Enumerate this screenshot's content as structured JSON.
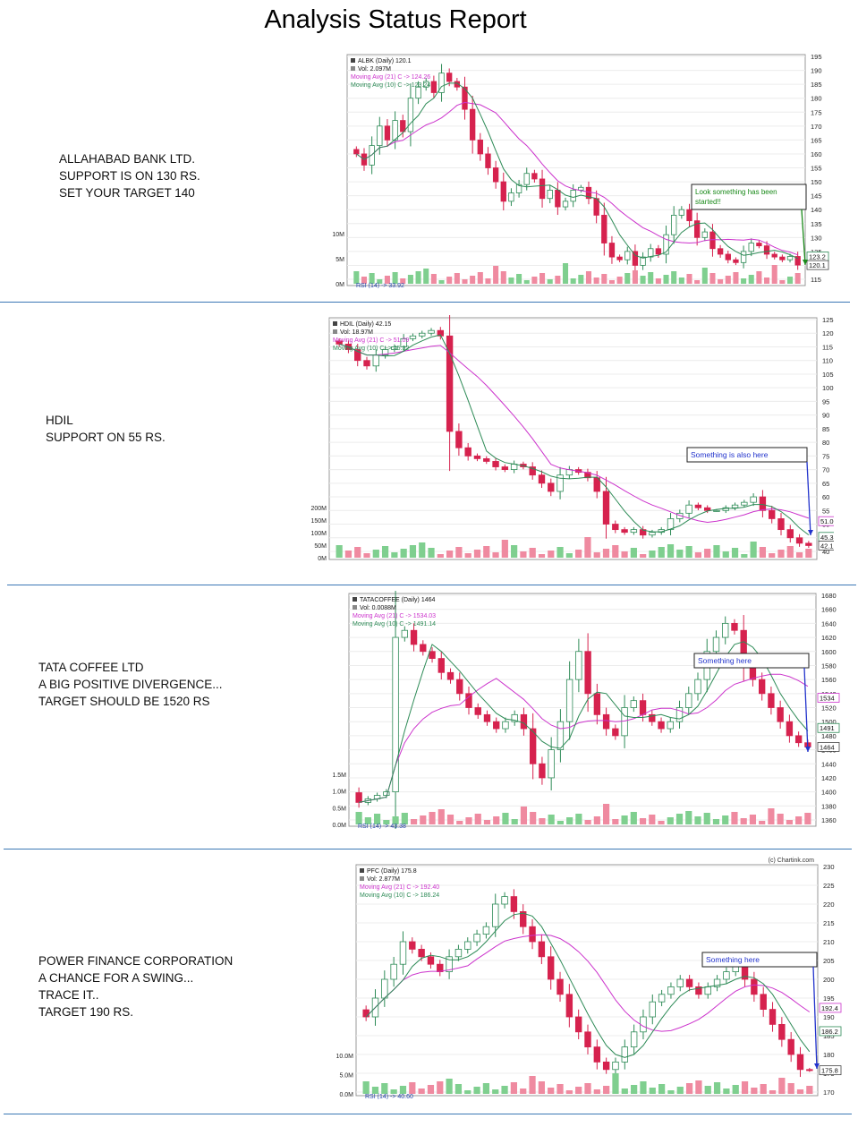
{
  "page": {
    "title": "Analysis Status Report"
  },
  "colors": {
    "up": "#2e8b57",
    "down": "#d6224e",
    "ma21": "#cc33cc",
    "ma10": "#2e8b57",
    "vol_up": "#7fcf8f",
    "vol_down": "#ef8aa0",
    "separator": "#3b78b5",
    "callout_green": "#1a8a1a",
    "callout_blue": "#2233cc"
  },
  "charts": [
    {
      "note_lines": [
        "ALLAHABAD BANK LTD.",
        "SUPPORT IS ON 130 RS.",
        "SET YOUR TARGET 140"
      ],
      "legend": {
        "title": "ALBK (Daily) 120.1",
        "vol": "Vol: 2.097M",
        "ma21": "Moving Avg (21) C -> 124.26",
        "ma10": "Moving Avg (10) C -> 123.24"
      },
      "vol_labels": [
        "10M",
        "5M",
        "0M"
      ],
      "rsi_label": "RSI (14) -> 33.92",
      "callout": {
        "text": "Look something has been started!!",
        "color": "callout_green"
      },
      "price_tags": [
        {
          "text": "123.2",
          "value": 123.2
        },
        {
          "text": "120.1",
          "value": 120.1
        }
      ],
      "chart_data": {
        "type": "candlestick",
        "title": "ALBK (Daily) 120.1",
        "ylim": [
          115,
          195
        ],
        "y_ticks": [
          "195",
          "190",
          "185",
          "180",
          "175",
          "170",
          "165",
          "160",
          "155",
          "150",
          "145",
          "140",
          "135",
          "130",
          "125",
          "120",
          "115"
        ],
        "close": [
          160,
          156,
          163,
          170,
          165,
          172,
          168,
          180,
          184,
          186,
          182,
          189,
          186,
          184,
          176,
          165,
          160,
          155,
          150,
          143,
          146,
          149,
          153,
          151,
          144,
          147,
          141,
          143,
          147,
          148,
          144,
          138,
          128,
          123,
          122,
          125,
          120,
          123,
          126,
          124,
          131,
          138,
          140,
          136,
          130,
          132,
          126,
          124,
          122,
          121,
          125,
          128,
          127,
          124,
          123,
          122,
          123.2,
          120.1
        ],
        "ma21_end": 124.26,
        "ma10_end": 123.24,
        "volume_end": "2.097M"
      }
    },
    {
      "note_lines": [
        "HDIL",
        "SUPPORT ON 55 RS."
      ],
      "legend": {
        "title": "HDIL (Daily) 42.15",
        "vol": "Vol: 18.97M",
        "ma21": "Moving Avg (21) C -> 51.09",
        "ma10": "Moving Avg (10) C -> 45.32"
      },
      "vol_labels": [
        "200M",
        "150M",
        "100M",
        "50M",
        "0M"
      ],
      "rsi_label": "",
      "callout": {
        "text": "Something is also here",
        "color": "callout_blue"
      },
      "price_tags": [
        {
          "text": "51.09",
          "value": 51.09
        },
        {
          "text": "45.32",
          "value": 45.32
        },
        {
          "text": "42.15",
          "value": 42.15
        }
      ],
      "chart_data": {
        "type": "candlestick",
        "title": "HDIL (Daily) 42.15",
        "ylim": [
          40,
          125
        ],
        "y_ticks": [
          "125",
          "120",
          "115",
          "110",
          "105",
          "100",
          "95",
          "90",
          "85",
          "80",
          "75",
          "70",
          "65",
          "60",
          "55",
          "50",
          "45",
          "40"
        ],
        "close": [
          116,
          114,
          110,
          108,
          112,
          114,
          115,
          118,
          119,
          120,
          121,
          119,
          84,
          78,
          75,
          74,
          73,
          71,
          70,
          72,
          71,
          68,
          65,
          62,
          68,
          70,
          69,
          67,
          62,
          50,
          48,
          47,
          48,
          46,
          47,
          48,
          52,
          54,
          57,
          56,
          55,
          55,
          56,
          57,
          58,
          60,
          55,
          52,
          48,
          45,
          43,
          42.15
        ],
        "ma21_end": 51.09,
        "ma10_end": 45.32,
        "volume_end": "18.97M"
      }
    },
    {
      "note_lines": [
        "TATA COFFEE LTD",
        "A BIG POSITIVE DIVERGENCE...",
        "TARGET SHOULD BE 1520 RS"
      ],
      "legend": {
        "title": "TATACOFFEE (Daily) 1464",
        "vol": "Vol: 0.0088M",
        "ma21": "Moving Avg (21) C -> 1534.03",
        "ma10": "Moving Avg (10) C -> 1491.14"
      },
      "vol_labels": [
        "1.5M",
        "1.0M",
        "0.5M",
        "0.0M"
      ],
      "rsi_label": "RSI (14) -> 43.38",
      "callout": {
        "text": "Something here",
        "color": "callout_blue"
      },
      "price_tags": [
        {
          "text": "1534",
          "value": 1534
        },
        {
          "text": "1491",
          "value": 1491
        },
        {
          "text": "1464",
          "value": 1464
        }
      ],
      "chart_data": {
        "type": "candlestick",
        "title": "TATACOFFEE (Daily) 1464",
        "ylim": [
          1360,
          1680
        ],
        "y_ticks": [
          "1680",
          "1660",
          "1640",
          "1620",
          "1600",
          "1580",
          "1560",
          "1540",
          "1520",
          "1500",
          "1480",
          "1460",
          "1440",
          "1420",
          "1400",
          "1380",
          "1360"
        ],
        "close": [
          1385,
          1390,
          1395,
          1400,
          1620,
          1630,
          1610,
          1600,
          1590,
          1570,
          1560,
          1540,
          1520,
          1510,
          1500,
          1490,
          1500,
          1510,
          1490,
          1440,
          1420,
          1460,
          1500,
          1560,
          1600,
          1540,
          1510,
          1490,
          1480,
          1520,
          1530,
          1510,
          1500,
          1490,
          1500,
          1520,
          1540,
          1560,
          1600,
          1620,
          1640,
          1630,
          1580,
          1560,
          1540,
          1520,
          1500,
          1480,
          1470,
          1464
        ],
        "ma21_end": 1534.03,
        "ma10_end": 1491.14,
        "volume_end": "0.0088M"
      }
    },
    {
      "note_lines": [
        "POWER FINANCE CORPORATION",
        "A CHANCE FOR A SWING...",
        "TRACE IT..",
        "TARGET 190 RS."
      ],
      "legend": {
        "title": "PFC (Daily) 175.8",
        "vol": "Vol: 2.877M",
        "ma21": "Moving Avg (21) C -> 192.40",
        "ma10": "Moving Avg (10) C -> 186.24"
      },
      "vol_labels": [
        "10.0M",
        "5.0M",
        "0.0M"
      ],
      "rsi_label": "RSI (14) -> 40.60",
      "copyright": "(c) Chartink.com",
      "callout": {
        "text": "Something here",
        "color": "callout_blue"
      },
      "price_tags": [
        {
          "text": "192.4",
          "value": 192.4
        },
        {
          "text": "186.2",
          "value": 186.2
        },
        {
          "text": "175.8",
          "value": 175.8
        }
      ],
      "chart_data": {
        "type": "candlestick",
        "title": "PFC (Daily) 175.8",
        "ylim": [
          170,
          230
        ],
        "y_ticks": [
          "230",
          "225",
          "220",
          "215",
          "210",
          "205",
          "200",
          "195",
          "190",
          "185",
          "180",
          "175",
          "170"
        ],
        "close": [
          190,
          195,
          200,
          204,
          210,
          208,
          206,
          204,
          202,
          206,
          208,
          210,
          212,
          214,
          220,
          222,
          218,
          214,
          210,
          206,
          200,
          196,
          190,
          186,
          182,
          178,
          176,
          178,
          182,
          186,
          190,
          194,
          196,
          198,
          200,
          198,
          196,
          198,
          200,
          202,
          204,
          200,
          196,
          192,
          188,
          184,
          180,
          176,
          175.8
        ],
        "ma21_end": 192.4,
        "ma10_end": 186.24,
        "volume_end": "2.877M"
      }
    }
  ]
}
